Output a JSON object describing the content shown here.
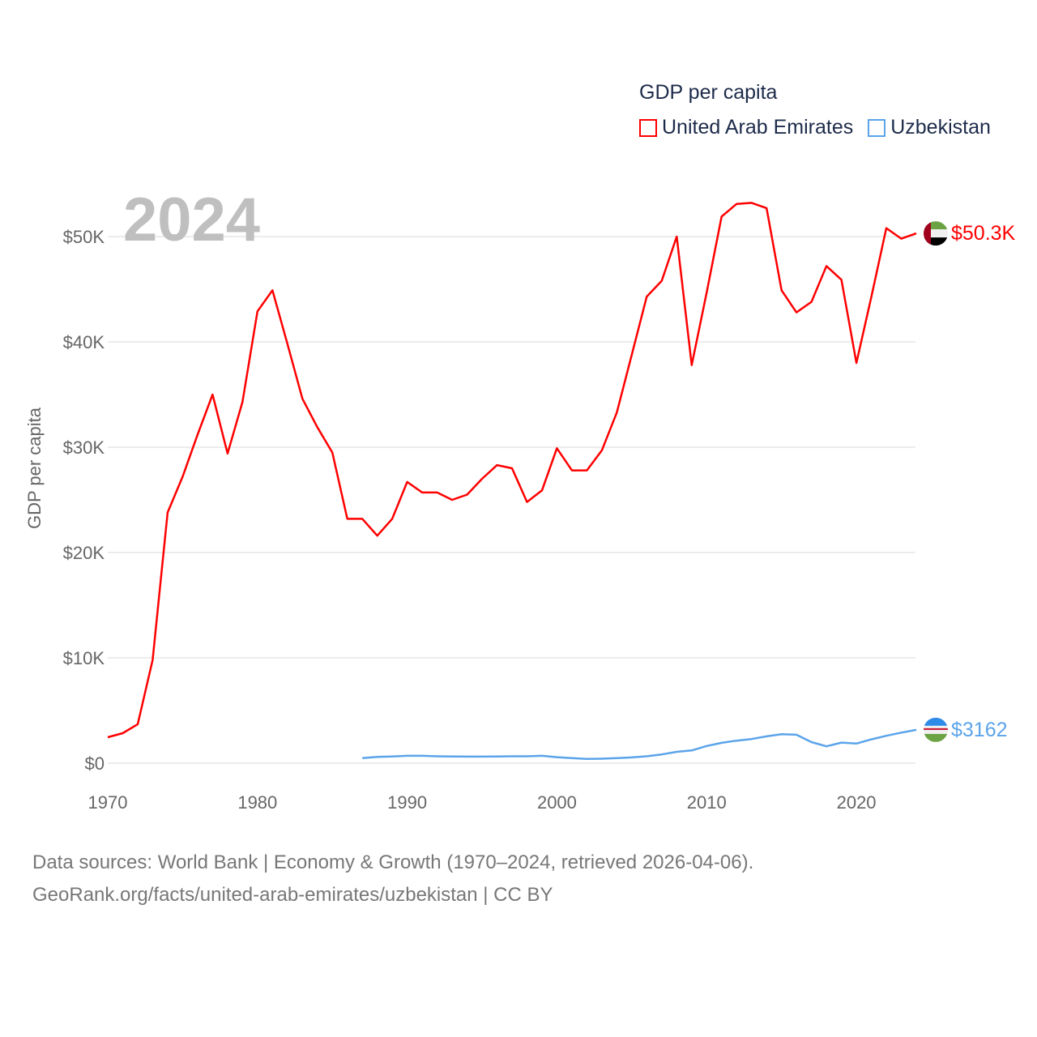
{
  "legend": {
    "title": "GDP per capita"
  },
  "year_label": "2024",
  "source": {
    "line1": "Data sources: World Bank | Economy & Growth (1970–2024, retrieved 2026-04-06).",
    "line2": "GeoRank.org/facts/united-arab-emirates/uzbekistan | CC BY"
  },
  "chart_data": {
    "type": "line",
    "title": "GDP per capita",
    "xlabel": "",
    "ylabel": "GDP per capita",
    "xlim": [
      1970,
      2024
    ],
    "ylim": [
      0,
      55000
    ],
    "x_ticks": [
      1970,
      1980,
      1990,
      2000,
      2010,
      2020
    ],
    "x_tick_labels": [
      "1970",
      "1980",
      "1990",
      "2000",
      "2010",
      "2020"
    ],
    "y_ticks": [
      0,
      10000,
      20000,
      30000,
      40000,
      50000
    ],
    "y_tick_labels": [
      "$0",
      "$10K",
      "$20K",
      "$30K",
      "$40K",
      "$50K"
    ],
    "grid": true,
    "legend_position": "top-right",
    "series": [
      {
        "name": "United Arab Emirates",
        "color": "#ff0000",
        "end_label": "$50.3K",
        "start_year": 1970,
        "values": [
          2460,
          2850,
          3700,
          9800,
          23800,
          27200,
          31200,
          35000,
          29400,
          34300,
          42900,
          44900,
          39800,
          34600,
          31900,
          29500,
          23200,
          23200,
          21600,
          23200,
          26700,
          25700,
          25700,
          25000,
          25500,
          27000,
          28300,
          28000,
          24800,
          25900,
          29900,
          27800,
          27800,
          29700,
          33300,
          38800,
          44300,
          45800,
          50000,
          37800,
          44700,
          51900,
          53100,
          53200,
          52700,
          44900,
          42800,
          43800,
          47200,
          45900,
          38000,
          44300,
          50800,
          49800,
          50300
        ]
      },
      {
        "name": "Uzbekistan",
        "color": "#5ba4ea",
        "end_label": "$3162",
        "start_year": 1987,
        "values": [
          480,
          600,
          640,
          700,
          700,
          650,
          630,
          620,
          620,
          630,
          650,
          650,
          700,
          570,
          480,
          400,
          420,
          480,
          550,
          650,
          830,
          1080,
          1210,
          1630,
          1930,
          2140,
          2290,
          2550,
          2750,
          2700,
          2000,
          1600,
          1950,
          1860,
          2260,
          2600,
          2900,
          3162
        ]
      }
    ]
  }
}
